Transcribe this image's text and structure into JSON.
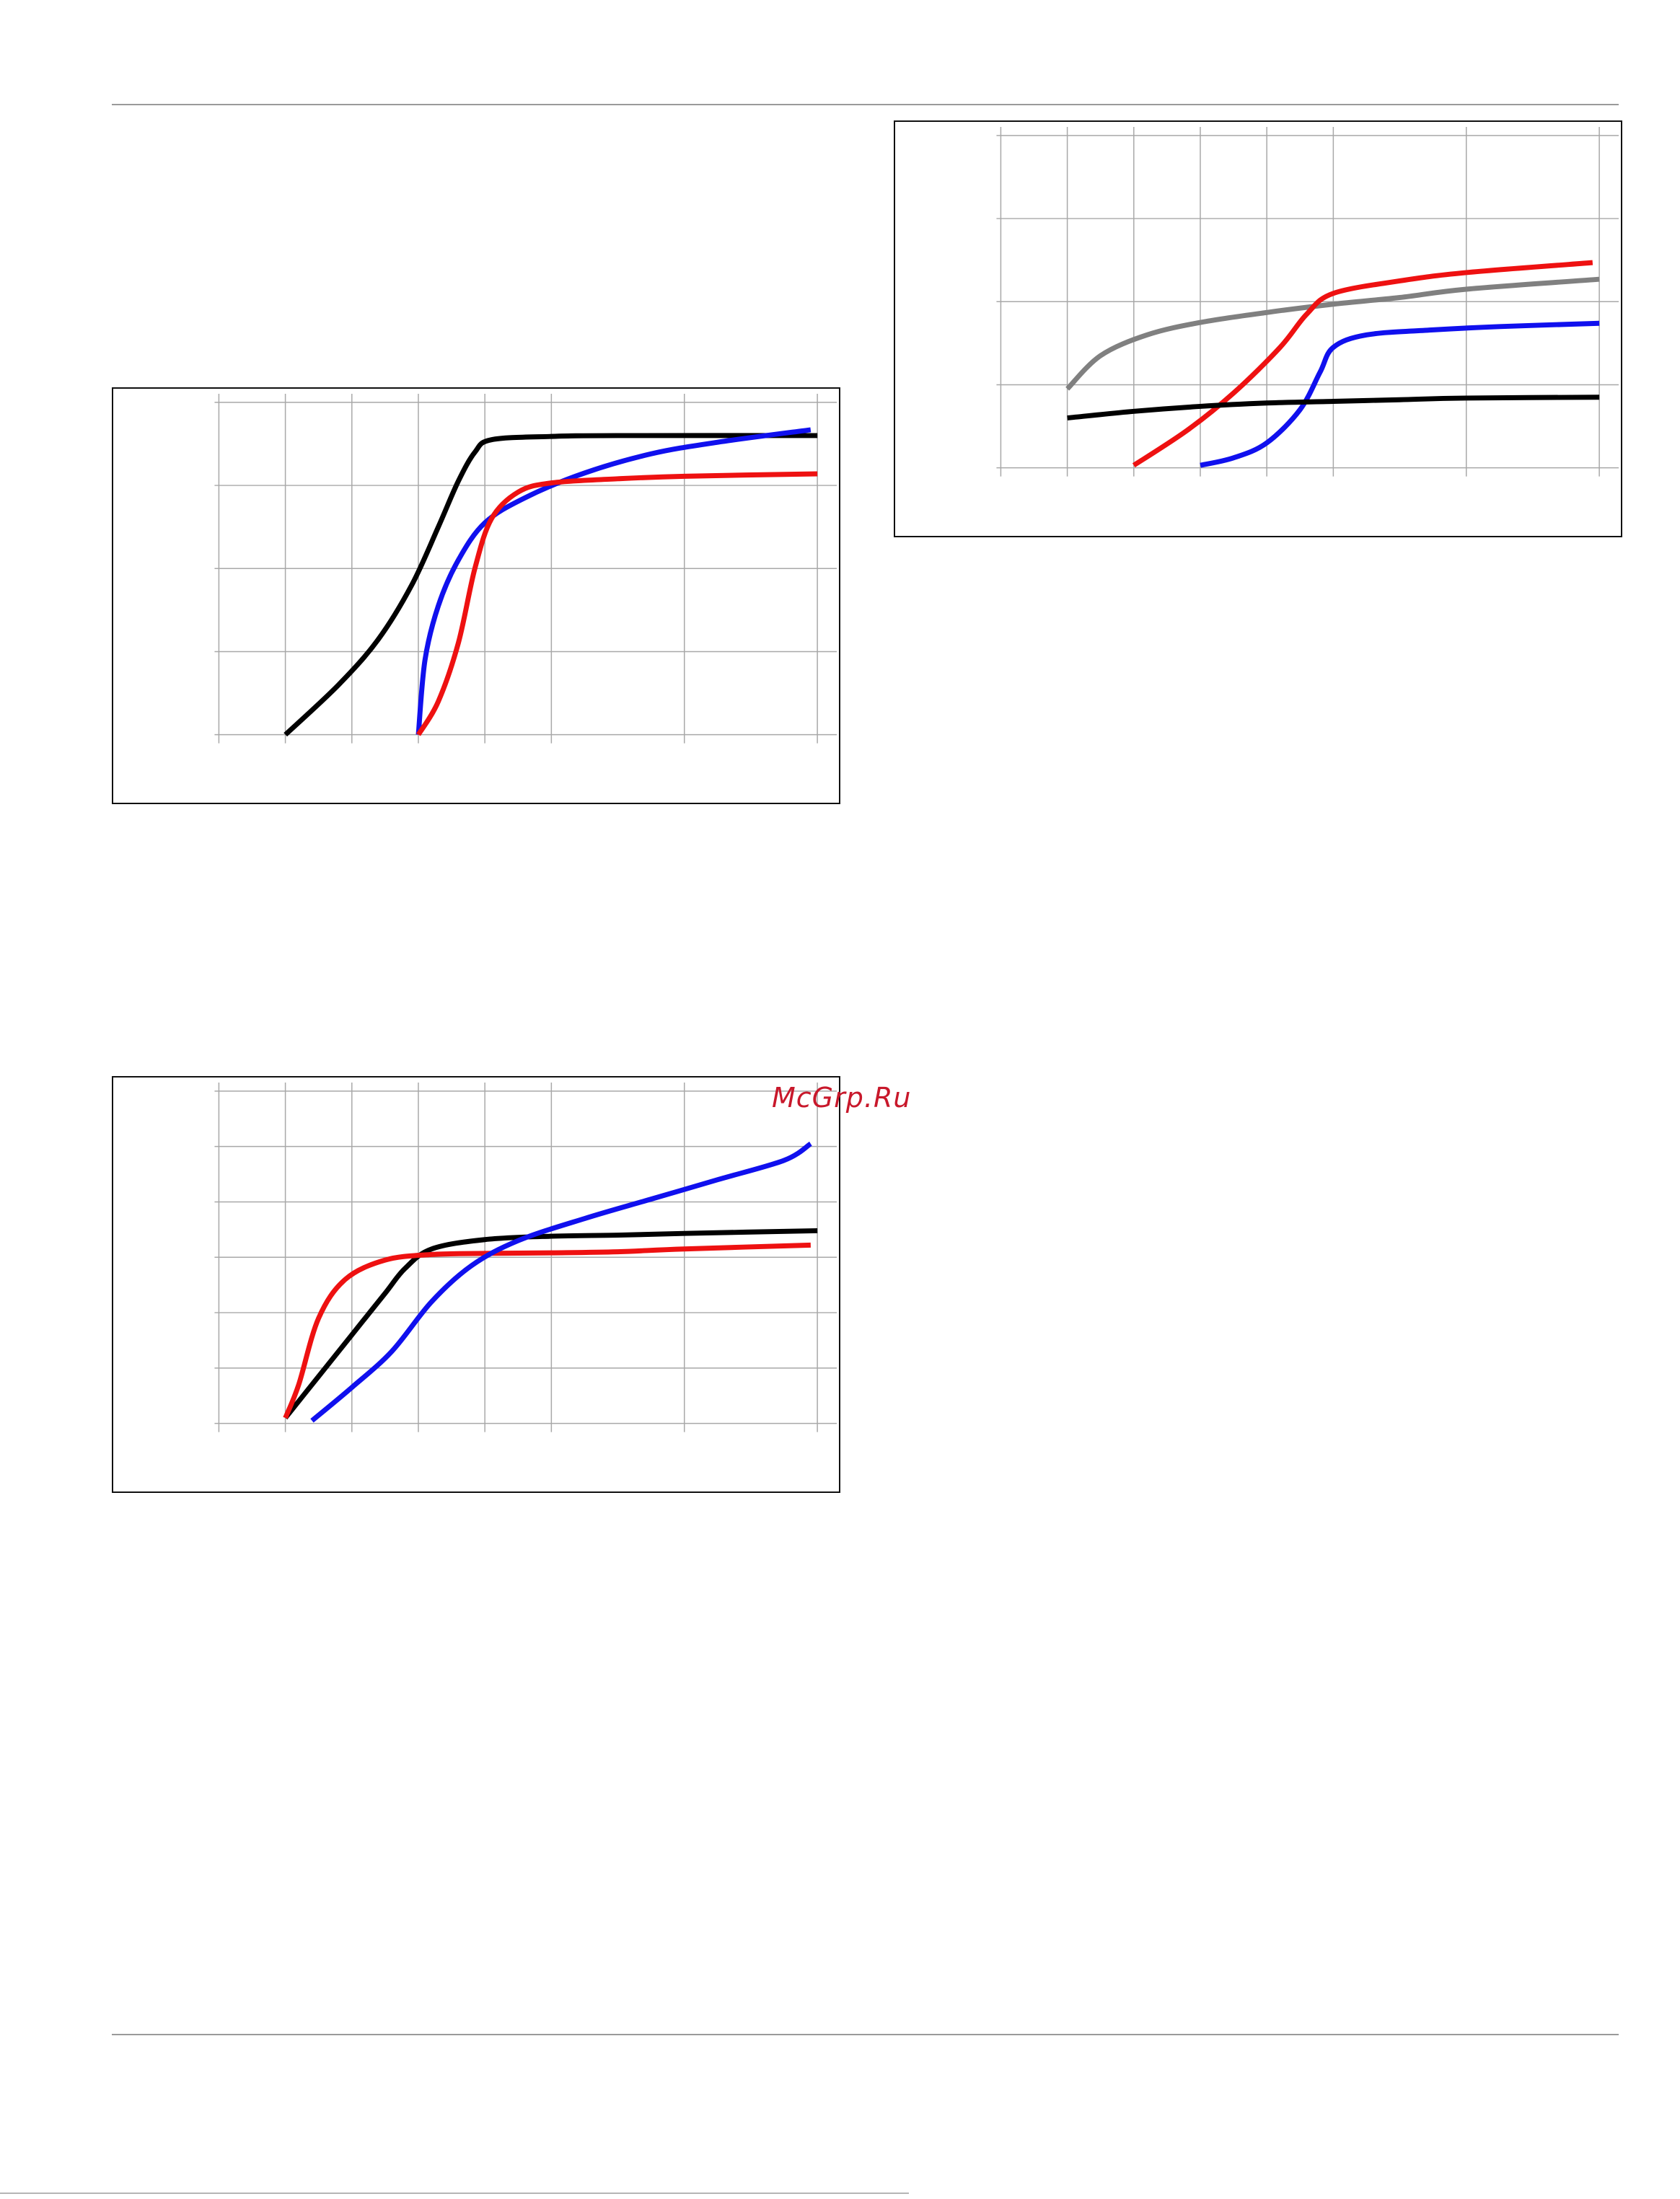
{
  "watermark": {
    "text": "McGrp.Ru",
    "color": "#c8182b"
  },
  "colors": {
    "black": "#000000",
    "red": "#ee1111",
    "blue": "#1010ee",
    "gray": "#808080",
    "grid": "#a8a8a8"
  },
  "chart_data": [
    {
      "type": "line",
      "title": "",
      "xlabel": "",
      "ylabel": "",
      "grid": true,
      "xlim": [
        0,
        9
      ],
      "ylim": [
        0,
        4
      ],
      "x_gridlines": [
        0,
        1,
        2,
        3,
        4,
        5,
        7,
        9
      ],
      "y_gridlines": [
        0,
        1,
        2,
        3,
        4
      ],
      "series": [
        {
          "color": "black",
          "points": [
            [
              1,
              0
            ],
            [
              1.8,
              0.6
            ],
            [
              2.4,
              1.15
            ],
            [
              2.9,
              1.8
            ],
            [
              3.3,
              2.5
            ],
            [
              3.6,
              3.05
            ],
            [
              3.85,
              3.4
            ],
            [
              4.1,
              3.55
            ],
            [
              5,
              3.59
            ],
            [
              6,
              3.6
            ],
            [
              9,
              3.6
            ]
          ]
        },
        {
          "color": "blue",
          "points": [
            [
              3,
              0
            ],
            [
              3.1,
              0.9
            ],
            [
              3.3,
              1.55
            ],
            [
              3.6,
              2.1
            ],
            [
              4,
              2.55
            ],
            [
              4.6,
              2.85
            ],
            [
              5.5,
              3.15
            ],
            [
              6.5,
              3.38
            ],
            [
              7.5,
              3.52
            ],
            [
              8.9,
              3.67
            ]
          ]
        },
        {
          "color": "red",
          "points": [
            [
              3,
              0
            ],
            [
              3.3,
              0.4
            ],
            [
              3.6,
              1.1
            ],
            [
              3.85,
              2.0
            ],
            [
              4.1,
              2.6
            ],
            [
              4.5,
              2.92
            ],
            [
              5,
              3.03
            ],
            [
              6,
              3.08
            ],
            [
              7,
              3.11
            ],
            [
              9,
              3.14
            ]
          ]
        }
      ]
    },
    {
      "type": "line",
      "title": "",
      "xlabel": "",
      "ylabel": "",
      "grid": true,
      "xlim": [
        0,
        9
      ],
      "ylim": [
        0,
        6
      ],
      "x_gridlines": [
        0,
        1,
        2,
        3,
        4,
        5,
        7,
        9
      ],
      "y_gridlines": [
        0,
        1,
        2,
        3,
        4,
        5,
        6
      ],
      "series": [
        {
          "color": "black",
          "points": [
            [
              1,
              0.1
            ],
            [
              1.5,
              0.85
            ],
            [
              2,
              1.6
            ],
            [
              2.5,
              2.35
            ],
            [
              2.8,
              2.8
            ],
            [
              3.2,
              3.15
            ],
            [
              4,
              3.32
            ],
            [
              5,
              3.38
            ],
            [
              6,
              3.4
            ],
            [
              7,
              3.43
            ],
            [
              9,
              3.48
            ]
          ]
        },
        {
          "color": "red",
          "points": [
            [
              1,
              0.1
            ],
            [
              1.2,
              0.7
            ],
            [
              1.5,
              1.9
            ],
            [
              1.9,
              2.6
            ],
            [
              2.5,
              2.95
            ],
            [
              3.2,
              3.05
            ],
            [
              4,
              3.07
            ],
            [
              5,
              3.08
            ],
            [
              6,
              3.1
            ],
            [
              7,
              3.15
            ],
            [
              8.9,
              3.22
            ]
          ]
        },
        {
          "color": "blue",
          "points": [
            [
              1.4,
              0.05
            ],
            [
              2,
              0.65
            ],
            [
              2.6,
              1.3
            ],
            [
              3.2,
              2.2
            ],
            [
              3.8,
              2.85
            ],
            [
              4.5,
              3.3
            ],
            [
              5.5,
              3.7
            ],
            [
              6.5,
              4.05
            ],
            [
              7.5,
              4.4
            ],
            [
              8.5,
              4.75
            ],
            [
              8.9,
              5.05
            ]
          ]
        }
      ]
    },
    {
      "type": "line",
      "title": "",
      "xlabel": "",
      "ylabel": "",
      "grid": true,
      "xlim": [
        0,
        9
      ],
      "ylim": [
        0,
        4
      ],
      "x_gridlines": [
        0,
        1,
        2,
        3,
        4,
        5,
        7,
        9
      ],
      "y_gridlines": [
        0,
        1,
        2,
        3,
        4
      ],
      "series": [
        {
          "color": "gray",
          "points": [
            [
              1,
              0.95
            ],
            [
              1.5,
              1.35
            ],
            [
              2.2,
              1.6
            ],
            [
              3,
              1.75
            ],
            [
              4,
              1.87
            ],
            [
              5,
              1.97
            ],
            [
              6,
              2.05
            ],
            [
              7,
              2.15
            ],
            [
              9,
              2.27
            ]
          ]
        },
        {
          "color": "red",
          "points": [
            [
              2,
              0.03
            ],
            [
              2.8,
              0.45
            ],
            [
              3.5,
              0.9
            ],
            [
              4.2,
              1.45
            ],
            [
              4.6,
              1.85
            ],
            [
              5,
              2.1
            ],
            [
              6,
              2.25
            ],
            [
              7,
              2.35
            ],
            [
              8.9,
              2.47
            ]
          ]
        },
        {
          "color": "blue",
          "points": [
            [
              3,
              0.03
            ],
            [
              3.5,
              0.12
            ],
            [
              4,
              0.3
            ],
            [
              4.5,
              0.7
            ],
            [
              4.8,
              1.15
            ],
            [
              5,
              1.45
            ],
            [
              5.5,
              1.6
            ],
            [
              6.5,
              1.66
            ],
            [
              7.5,
              1.7
            ],
            [
              9,
              1.74
            ]
          ]
        },
        {
          "color": "black",
          "points": [
            [
              1,
              0.6
            ],
            [
              2,
              0.68
            ],
            [
              3,
              0.74
            ],
            [
              4,
              0.78
            ],
            [
              5,
              0.8
            ],
            [
              6,
              0.82
            ],
            [
              7,
              0.84
            ],
            [
              9,
              0.85
            ]
          ]
        }
      ]
    }
  ]
}
